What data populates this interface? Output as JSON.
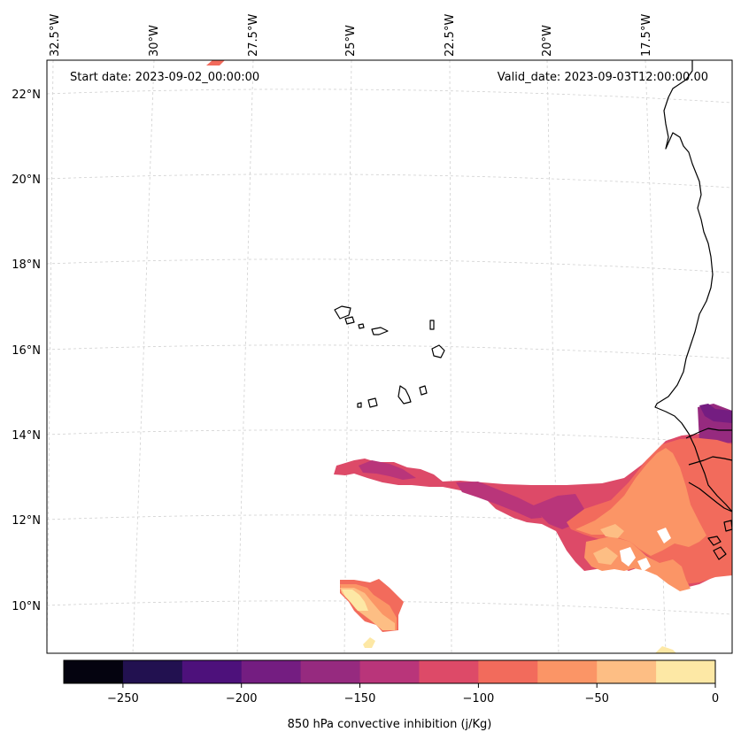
{
  "map": {
    "start_date": "Start date: 2023-09-02_00:00:00",
    "valid_date": "Valid_date: 2023-09-03T12:00:00.00",
    "lon_labels": [
      "32.5°W",
      "30°W",
      "27.5°W",
      "25°W",
      "22.5°W",
      "20°W",
      "17.5°W"
    ],
    "lat_labels": [
      "22°N",
      "20°N",
      "18°N",
      "16°N",
      "14°N",
      "12°N",
      "10°N"
    ]
  },
  "colorbar": {
    "title": "850 hPa convective inhibition (j/Kg)",
    "ticks": [
      "−250",
      "−200",
      "−150",
      "−100",
      "−50",
      "0"
    ],
    "colors": [
      "#04030f",
      "#221150",
      "#4d117b",
      "#741d81",
      "#962a7f",
      "#b9357a",
      "#dd4a68",
      "#f26b5c",
      "#fb9566",
      "#fdbe84",
      "#fde8a5"
    ]
  },
  "palette": {
    "land_outline": "#000000",
    "grid": "#cccccc"
  }
}
